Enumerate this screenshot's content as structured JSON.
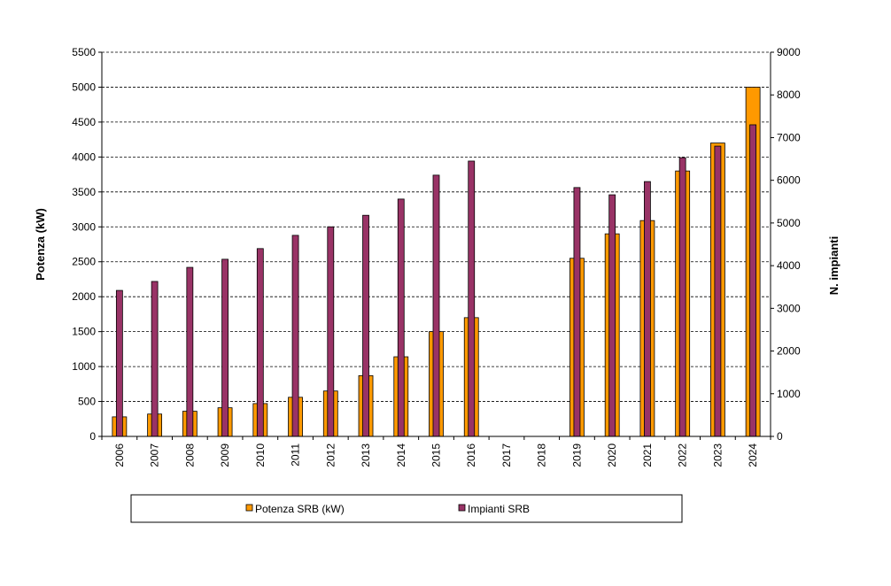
{
  "chart_data": {
    "type": "bar",
    "title": "",
    "categories": [
      "2006",
      "2007",
      "2008",
      "2009",
      "2010",
      "2011",
      "2012",
      "2013",
      "2014",
      "2015",
      "2016",
      "2017",
      "2018",
      "2019",
      "2020",
      "2021",
      "2022",
      "2023",
      "2024"
    ],
    "series": [
      {
        "name": "Potenza SRB (kW)",
        "axis": "left",
        "color": "#FF9900",
        "values": [
          280,
          320,
          360,
          410,
          470,
          560,
          650,
          870,
          1140,
          1500,
          1700,
          null,
          null,
          2550,
          2900,
          3090,
          3800,
          4200,
          5000
        ]
      },
      {
        "name": "Impianti SRB",
        "axis": "right",
        "color": "#993366",
        "values": [
          3420,
          3630,
          3960,
          4150,
          4400,
          4710,
          4910,
          5180,
          5560,
          6120,
          6450,
          null,
          null,
          5830,
          5660,
          5970,
          6530,
          6800,
          7300
        ]
      }
    ],
    "ylabel": "Potenza (kW)",
    "ylabel_right": "N. impianti",
    "ylim": [
      0,
      5500
    ],
    "ylim_right": [
      0,
      9000
    ],
    "yticks": [
      0,
      500,
      1000,
      1500,
      2000,
      2500,
      3000,
      3500,
      4000,
      4500,
      5000,
      5500
    ],
    "yticks_right": [
      0,
      1000,
      2000,
      3000,
      4000,
      5000,
      6000,
      7000,
      8000,
      9000
    ],
    "grid": true,
    "legend_position": "bottom"
  }
}
